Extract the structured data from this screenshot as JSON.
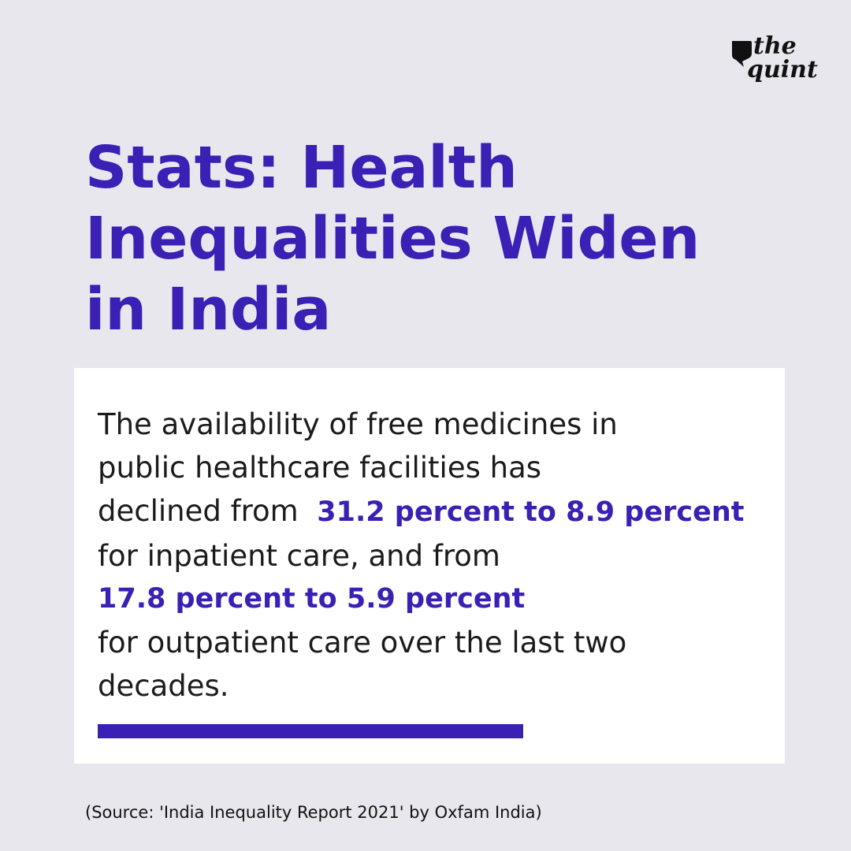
{
  "brand": {
    "logo_line1": "the",
    "logo_line2": "quint",
    "logo_icon": "speech-bubble-icon"
  },
  "headline": {
    "line1": "Stats: Health",
    "line2": "Inequalities Widen",
    "line3": "in India"
  },
  "stat_card": {
    "line1": "The availability of free medicines in",
    "line2": "public healthcare facilities has",
    "line3_prefix": "declined from",
    "highlight1": "31.2 percent to 8.9 percent",
    "line4": "for inpatient care, and from",
    "highlight2": "17.8 percent to 5.9 percent",
    "line6": "for outpatient care over the last two",
    "line7": "decades."
  },
  "footer": {
    "source": "(Source: 'India Inequality Report 2021' by Oxfam India)"
  },
  "colors": {
    "accent": "#3a20b4",
    "background": "#e9e7ee",
    "card": "#ffffff",
    "text": "#1b1b1b"
  }
}
